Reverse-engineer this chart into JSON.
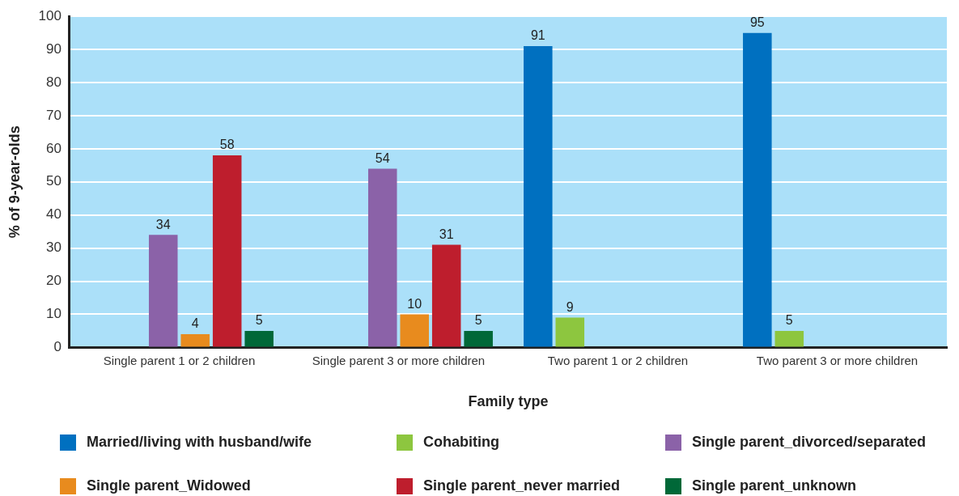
{
  "chart_data": {
    "type": "bar",
    "categories": [
      "Single parent 1 or 2 children",
      "Single parent 3 or more children",
      "Two parent 1 or 2 children",
      "Two parent 3 or more children"
    ],
    "series": [
      {
        "name": "Married/living with husband/wife",
        "color": "#0070c0",
        "values": [
          null,
          null,
          91,
          95
        ]
      },
      {
        "name": "Cohabiting",
        "color": "#8dc63f",
        "values": [
          null,
          null,
          9,
          5
        ]
      },
      {
        "name": "Single parent_divorced/separated",
        "color": "#8b62a8",
        "values": [
          34,
          54,
          null,
          null
        ]
      },
      {
        "name": "Single parent_Widowed",
        "color": "#e88b1e",
        "values": [
          4,
          10,
          null,
          null
        ]
      },
      {
        "name": "Single parent_never married",
        "color": "#be1e2d",
        "values": [
          58,
          31,
          null,
          null
        ]
      },
      {
        "name": "Single parent_unknown",
        "color": "#006838",
        "values": [
          5,
          5,
          null,
          null
        ]
      }
    ],
    "xlabel": "Family type",
    "ylabel": "% of 9-year-olds",
    "ylim": [
      0,
      100
    ],
    "yticks": [
      0,
      10,
      20,
      30,
      40,
      50,
      60,
      70,
      80,
      90,
      100
    ],
    "grid": "y",
    "legend": "bottom",
    "data_labels": true
  }
}
